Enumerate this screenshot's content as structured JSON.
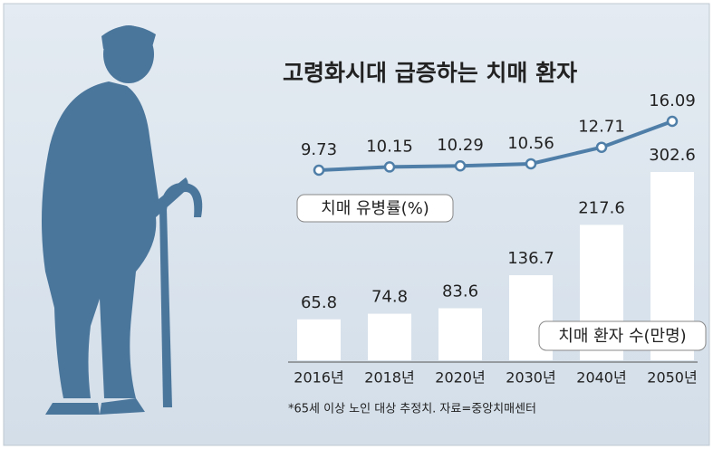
{
  "chart_data": [
    {
      "type": "line",
      "title": "고령화시대 급증하는 치매 환자",
      "categories": [
        "2016년",
        "2018년",
        "2020년",
        "2030년",
        "2040년",
        "2050년"
      ],
      "series": [
        {
          "name": "치매 유병률(%)",
          "color": "#4f7fa8",
          "values": [
            9.73,
            10.15,
            10.29,
            10.56,
            12.71,
            16.09
          ]
        }
      ]
    },
    {
      "type": "bar",
      "categories": [
        "2016년",
        "2018년",
        "2020년",
        "2030년",
        "2040년",
        "2050년"
      ],
      "series": [
        {
          "name": "치매 환자 수(만명)",
          "color": "#ffffff",
          "values": [
            65.8,
            74.8,
            83.6,
            136.7,
            217.6,
            302.6
          ]
        }
      ]
    }
  ],
  "footnote": "*65세 이상 노인 대상 추정치. 자료=중앙치매센터"
}
